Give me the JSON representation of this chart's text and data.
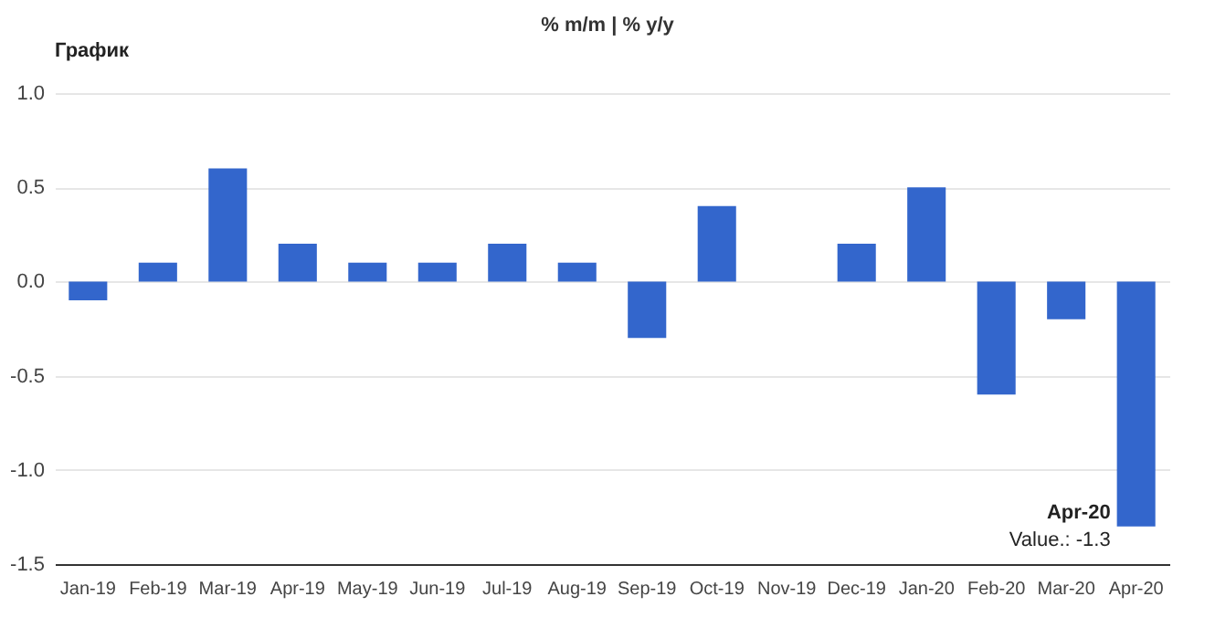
{
  "chart_data": {
    "type": "bar",
    "title": "График",
    "categories": [
      "Jan-19",
      "Feb-19",
      "Mar-19",
      "Apr-19",
      "May-19",
      "Jun-19",
      "Jul-19",
      "Aug-19",
      "Sep-19",
      "Oct-19",
      "Nov-19",
      "Dec-19",
      "Jan-20",
      "Feb-20",
      "Mar-20",
      "Apr-20"
    ],
    "values": [
      -0.1,
      0.1,
      0.6,
      0.2,
      0.1,
      0.1,
      0.2,
      0.1,
      -0.3,
      0.4,
      0,
      0.2,
      0.5,
      -0.6,
      -0.2,
      -1.3
    ],
    "color": "#3366cc",
    "ylim": [
      -1.5,
      1.0
    ],
    "yticks": [
      {
        "value": -1.5,
        "label": "-1.5"
      },
      {
        "value": -1,
        "label": "-1.0"
      },
      {
        "value": -0.5,
        "label": "-0.5"
      },
      {
        "value": 0,
        "label": "0.0"
      },
      {
        "value": 0.5,
        "label": "0.5"
      },
      {
        "value": 1,
        "label": "1.0"
      }
    ],
    "grid": "y",
    "annotations": [
      "% m/m | % y/y",
      {
        "text": "Apr-20",
        "x": "Apr-20",
        "y": -1.3
      },
      {
        "text": "Value.: -1.3",
        "x": "Apr-20",
        "y": -1.3
      }
    ]
  }
}
